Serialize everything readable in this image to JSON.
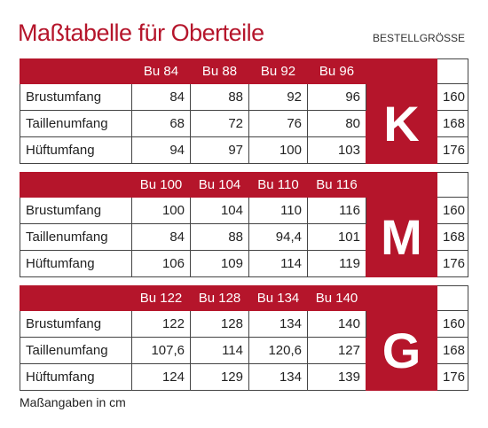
{
  "header": {
    "title": "Maßtabelle für Oberteile",
    "order_size_label": "BESTELLGRÖSSE"
  },
  "blocks": [
    {
      "sizes": [
        "Bu 84",
        "Bu 88",
        "Bu 92",
        "Bu 96"
      ],
      "letter": "K",
      "rows": [
        {
          "label": "Brustumfang",
          "values": [
            "84",
            "88",
            "92",
            "96"
          ],
          "order_size": "160"
        },
        {
          "label": "Taillenumfang",
          "values": [
            "68",
            "72",
            "76",
            "80"
          ],
          "order_size": "168"
        },
        {
          "label": "Hüftumfang",
          "values": [
            "94",
            "97",
            "100",
            "103"
          ],
          "order_size": "176"
        }
      ]
    },
    {
      "sizes": [
        "Bu 100",
        "Bu 104",
        "Bu 110",
        "Bu 116"
      ],
      "letter": "M",
      "rows": [
        {
          "label": "Brustumfang",
          "values": [
            "100",
            "104",
            "110",
            "116"
          ],
          "order_size": "160"
        },
        {
          "label": "Taillenumfang",
          "values": [
            "84",
            "88",
            "94,4",
            "101"
          ],
          "order_size": "168"
        },
        {
          "label": "Hüftumfang",
          "values": [
            "106",
            "109",
            "114",
            "119"
          ],
          "order_size": "176"
        }
      ]
    },
    {
      "sizes": [
        "Bu 122",
        "Bu 128",
        "Bu 134",
        "Bu 140"
      ],
      "letter": "G",
      "rows": [
        {
          "label": "Brustumfang",
          "values": [
            "122",
            "128",
            "134",
            "140"
          ],
          "order_size": "160"
        },
        {
          "label": "Taillenumfang",
          "values": [
            "107,6",
            "114",
            "120,6",
            "127"
          ],
          "order_size": "168"
        },
        {
          "label": "Hüftumfang",
          "values": [
            "124",
            "129",
            "134",
            "139"
          ],
          "order_size": "176"
        }
      ]
    }
  ],
  "footer": "Maßangaben in cm"
}
